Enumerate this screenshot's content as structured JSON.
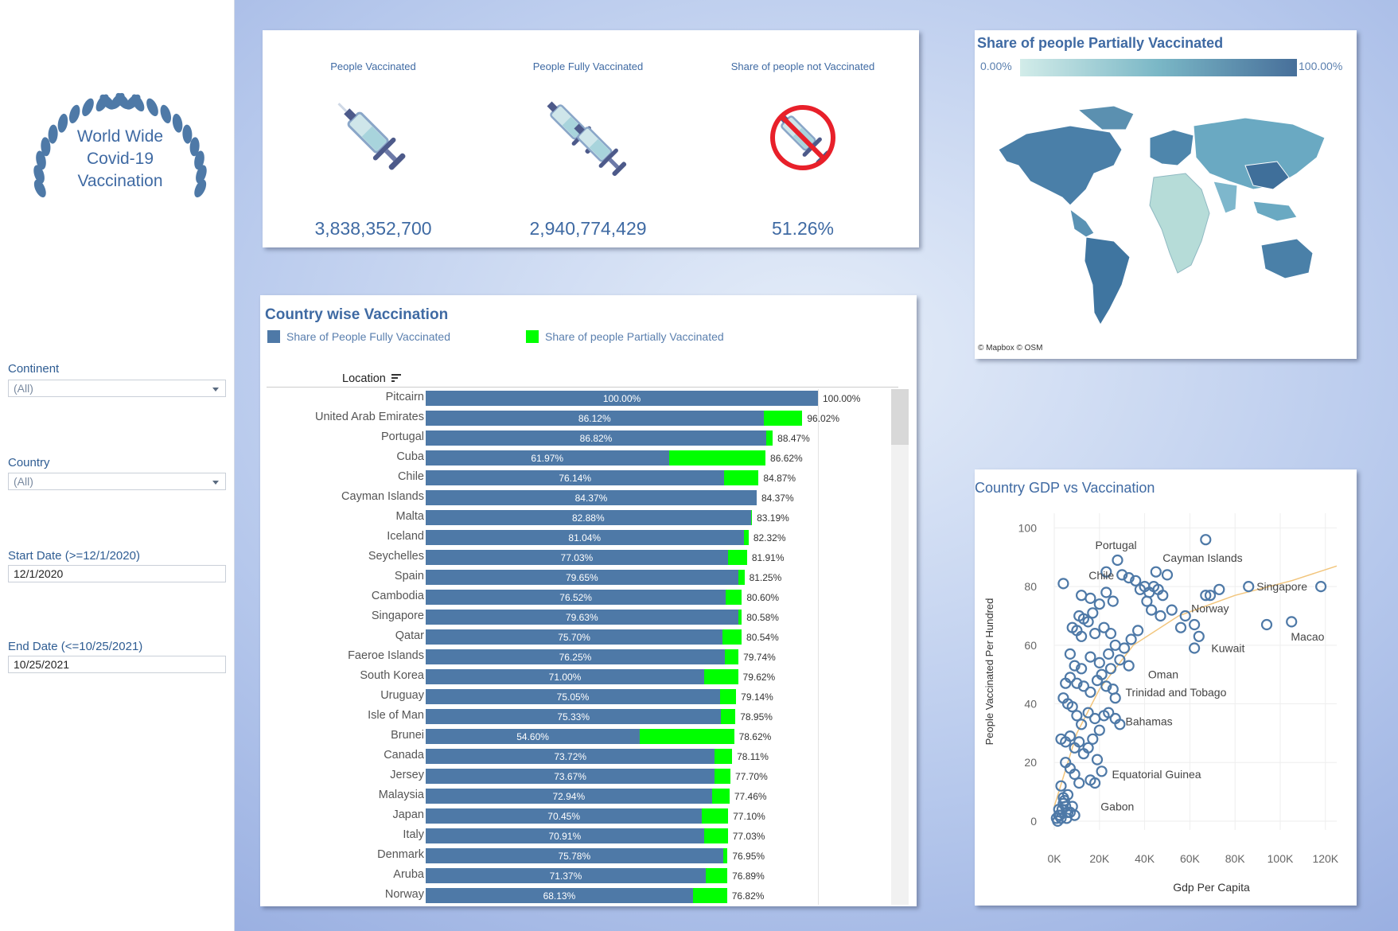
{
  "sidebar": {
    "logo_text": [
      "World Wide",
      "Covid-19",
      "Vaccination"
    ],
    "filters": {
      "continent": {
        "label": "Continent",
        "value": "(All)"
      },
      "country": {
        "label": "Country",
        "value": "(All)"
      },
      "start_date": {
        "label": "Start Date (>=12/1/2020)",
        "value": "12/1/2020"
      },
      "end_date": {
        "label": "End Date (<=10/25/2021)",
        "value": "10/25/2021"
      }
    }
  },
  "kpis": [
    {
      "title": "People Vaccinated",
      "value": "3,838,352,700",
      "icon": "syringe-icon"
    },
    {
      "title": "People Fully Vaccinated",
      "value": "2,940,774,429",
      "icon": "double-syringe-icon"
    },
    {
      "title": "Share of people not Vaccinated",
      "value": "51.26%",
      "icon": "no-syringe-icon"
    }
  ],
  "map": {
    "title": "Share of people Partially Vaccinated",
    "legend_min": "0.00%",
    "legend_max": "100.00%",
    "attribution": "© Mapbox  © OSM",
    "colors": {
      "low": "#d2ece9",
      "high": "#476f9a"
    }
  },
  "country_chart": {
    "title": "Country wise Vaccination",
    "legend_fully": "Share of People Fully Vaccinated",
    "legend_partial": "Share of people Partially Vaccinated",
    "header": "Location",
    "colors": {
      "fully": "#4e79a7",
      "partial": "#00ff00"
    }
  },
  "chart_data": [
    {
      "type": "bar",
      "title": "Country wise Vaccination",
      "orientation": "horizontal",
      "stacked": true,
      "categories": [
        "Pitcairn",
        "United Arab Emirates",
        "Portugal",
        "Cuba",
        "Chile",
        "Cayman Islands",
        "Malta",
        "Iceland",
        "Seychelles",
        "Spain",
        "Cambodia",
        "Singapore",
        "Qatar",
        "Faeroe Islands",
        "South Korea",
        "Uruguay",
        "Isle of Man",
        "Brunei",
        "Canada",
        "Jersey",
        "Malaysia",
        "Japan",
        "Italy",
        "Denmark",
        "Aruba",
        "Norway"
      ],
      "series": [
        {
          "name": "Share of People Fully Vaccinated",
          "values": [
            100.0,
            86.12,
            86.82,
            61.97,
            76.14,
            84.37,
            82.88,
            81.04,
            77.03,
            79.65,
            76.52,
            79.63,
            75.7,
            76.25,
            71.0,
            75.05,
            75.33,
            54.6,
            73.72,
            73.67,
            72.94,
            70.45,
            70.91,
            75.78,
            71.37,
            68.13
          ]
        },
        {
          "name": "Total",
          "values": [
            100.0,
            96.02,
            88.47,
            86.62,
            84.87,
            84.37,
            83.19,
            82.32,
            81.91,
            81.25,
            80.6,
            80.58,
            80.54,
            79.74,
            79.62,
            79.14,
            78.95,
            78.62,
            78.11,
            77.7,
            77.46,
            77.1,
            77.03,
            76.95,
            76.89,
            76.82
          ]
        }
      ],
      "value_labels_fully": [
        "100.00%",
        "86.12%",
        "86.82%",
        "61.97%",
        "76.14%",
        "84.37%",
        "82.88%",
        "81.04%",
        "77.03%",
        "79.65%",
        "76.52%",
        "79.63%",
        "75.70%",
        "76.25%",
        "71.00%",
        "75.05%",
        "75.33%",
        "54.60%",
        "73.72%",
        "73.67%",
        "72.94%",
        "70.45%",
        "70.91%",
        "75.78%",
        "71.37%",
        "68.13%"
      ],
      "value_labels_total": [
        "100.00%",
        "96.02%",
        "88.47%",
        "86.62%",
        "84.87%",
        "84.37%",
        "83.19%",
        "82.32%",
        "81.91%",
        "81.25%",
        "80.60%",
        "80.58%",
        "80.54%",
        "79.74%",
        "79.62%",
        "79.14%",
        "78.95%",
        "78.62%",
        "78.11%",
        "77.70%",
        "77.46%",
        "77.10%",
        "77.03%",
        "76.95%",
        "76.89%",
        "76.82%"
      ],
      "xlim": [
        0,
        100
      ]
    },
    {
      "type": "scatter",
      "title": "Country GDP vs Vaccination",
      "xlabel": "Gdp Per Capita",
      "ylabel": "People Vaccinated Per Hundred",
      "xlim": [
        0,
        125000
      ],
      "ylim": [
        -3,
        105
      ],
      "x_ticks": [
        "0K",
        "20K",
        "40K",
        "60K",
        "80K",
        "100K",
        "120K"
      ],
      "y_ticks": [
        "0",
        "20",
        "40",
        "60",
        "80",
        "100"
      ],
      "trend_color": "#f2c57c",
      "annotations": [
        {
          "label": "Portugal",
          "x": 28000,
          "y": 89
        },
        {
          "label": "Cayman Islands",
          "x": 67000,
          "y": 96
        },
        {
          "label": "Chile",
          "x": 23000,
          "y": 83
        },
        {
          "label": "Singapore",
          "x": 86000,
          "y": 80
        },
        {
          "label": "Norway",
          "x": 62000,
          "y": 75
        },
        {
          "label": "Kuwait",
          "x": 66000,
          "y": 59
        },
        {
          "label": "Macao",
          "x": 104000,
          "y": 67
        },
        {
          "label": "Oman",
          "x": 38000,
          "y": 53
        },
        {
          "label": "Trinidad and Tobago",
          "x": 28000,
          "y": 44
        },
        {
          "label": "Bahamas",
          "x": 28000,
          "y": 34
        },
        {
          "label": "Equatorial Guinea",
          "x": 22000,
          "y": 16
        },
        {
          "label": "Gabon",
          "x": 17000,
          "y": 5
        }
      ],
      "points": [
        [
          67000,
          96
        ],
        [
          28000,
          89
        ],
        [
          23000,
          85
        ],
        [
          30000,
          84
        ],
        [
          50000,
          84
        ],
        [
          45000,
          85
        ],
        [
          4000,
          81
        ],
        [
          86000,
          80
        ],
        [
          118000,
          80
        ],
        [
          73000,
          79
        ],
        [
          69000,
          77
        ],
        [
          67000,
          77
        ],
        [
          33000,
          83
        ],
        [
          36000,
          82
        ],
        [
          38000,
          79
        ],
        [
          40000,
          80
        ],
        [
          42000,
          78
        ],
        [
          44000,
          80
        ],
        [
          46000,
          79
        ],
        [
          48000,
          77
        ],
        [
          41000,
          75
        ],
        [
          43000,
          72
        ],
        [
          47000,
          70
        ],
        [
          52000,
          72
        ],
        [
          58000,
          70
        ],
        [
          56000,
          66
        ],
        [
          62000,
          67
        ],
        [
          64000,
          63
        ],
        [
          62000,
          59
        ],
        [
          94000,
          67
        ],
        [
          105000,
          68
        ],
        [
          12000,
          77
        ],
        [
          16000,
          76
        ],
        [
          20000,
          74
        ],
        [
          23000,
          78
        ],
        [
          26000,
          75
        ],
        [
          11000,
          70
        ],
        [
          13000,
          69
        ],
        [
          15000,
          68
        ],
        [
          17000,
          71
        ],
        [
          8000,
          66
        ],
        [
          10000,
          65
        ],
        [
          12000,
          63
        ],
        [
          18000,
          64
        ],
        [
          22000,
          66
        ],
        [
          25000,
          64
        ],
        [
          27000,
          60
        ],
        [
          31000,
          59
        ],
        [
          34000,
          62
        ],
        [
          37000,
          65
        ],
        [
          29000,
          55
        ],
        [
          33000,
          53
        ],
        [
          7000,
          57
        ],
        [
          9000,
          53
        ],
        [
          12000,
          52
        ],
        [
          16000,
          56
        ],
        [
          20000,
          54
        ],
        [
          24000,
          57
        ],
        [
          25000,
          52
        ],
        [
          5000,
          47
        ],
        [
          7000,
          49
        ],
        [
          10000,
          47
        ],
        [
          13000,
          46
        ],
        [
          16000,
          44
        ],
        [
          19000,
          48
        ],
        [
          21000,
          50
        ],
        [
          23000,
          46
        ],
        [
          26000,
          45
        ],
        [
          27000,
          42
        ],
        [
          4000,
          42
        ],
        [
          6000,
          40
        ],
        [
          8000,
          39
        ],
        [
          10000,
          36
        ],
        [
          12000,
          33
        ],
        [
          15000,
          37
        ],
        [
          18000,
          35
        ],
        [
          20000,
          31
        ],
        [
          22000,
          36
        ],
        [
          24000,
          37
        ],
        [
          27000,
          35
        ],
        [
          29000,
          33
        ],
        [
          3000,
          28
        ],
        [
          5000,
          27
        ],
        [
          7000,
          29
        ],
        [
          9000,
          25
        ],
        [
          11000,
          27
        ],
        [
          13000,
          23
        ],
        [
          15000,
          25
        ],
        [
          17000,
          28
        ],
        [
          19000,
          21
        ],
        [
          21000,
          17
        ],
        [
          16000,
          14
        ],
        [
          18000,
          13
        ],
        [
          9000,
          16
        ],
        [
          11000,
          13
        ],
        [
          5000,
          20
        ],
        [
          7000,
          18
        ],
        [
          3000,
          12
        ],
        [
          4000,
          8
        ],
        [
          5000,
          5
        ],
        [
          6000,
          3
        ],
        [
          2000,
          2
        ],
        [
          3000,
          1
        ],
        [
          1000,
          1
        ],
        [
          2000,
          4
        ],
        [
          4000,
          6
        ],
        [
          6000,
          9
        ],
        [
          1500,
          0
        ],
        [
          2500,
          2
        ],
        [
          3500,
          4
        ],
        [
          4500,
          7
        ],
        [
          5500,
          1
        ],
        [
          7000,
          3
        ],
        [
          8000,
          5
        ],
        [
          9000,
          2
        ]
      ]
    }
  ],
  "scatter_card": {
    "title": "Country GDP vs Vaccination"
  }
}
